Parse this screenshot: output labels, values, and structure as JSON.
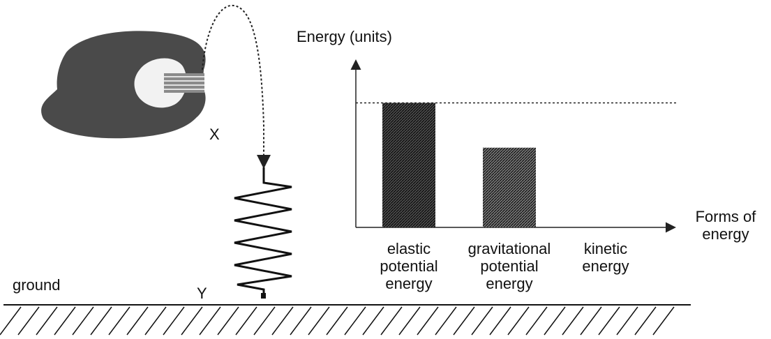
{
  "labels": {
    "ground": "ground",
    "x": "X",
    "y": "Y"
  },
  "chart_data": {
    "type": "bar",
    "y_label": "Energy (units)",
    "x_label": "Forms of energy",
    "categories": [
      "elastic potential energy",
      "gravitational potential energy",
      "kinetic energy"
    ],
    "values": [
      10,
      6.4,
      0
    ],
    "colors": [
      "#2a2a2a",
      "#5a5a5a",
      "#5a5a5a"
    ],
    "ylim": [
      0,
      13.5
    ],
    "reference_line": 10
  }
}
